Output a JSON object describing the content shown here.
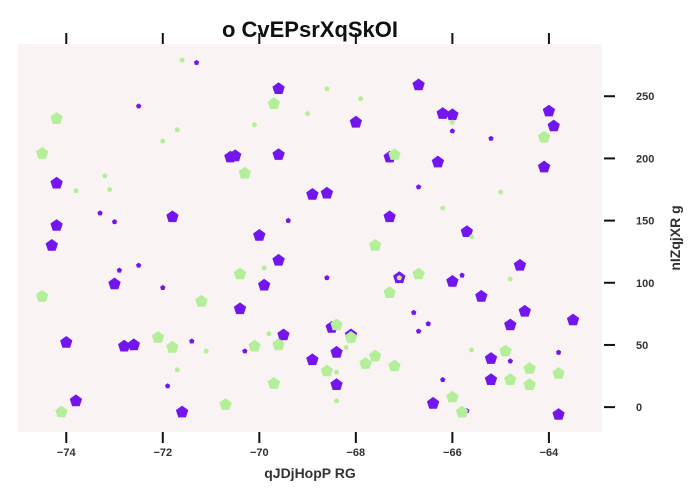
{
  "chart_data": {
    "type": "scatter",
    "title": "o CvEPsrXqSkOI",
    "xlabel": "qJDjHopP RG",
    "ylabel": "nIZqjXR g",
    "xlim": [
      -75.0,
      -62.9
    ],
    "ylim": [
      -20,
      292
    ],
    "x_ticks": [
      -74,
      -72,
      -70,
      -68,
      -66,
      -64
    ],
    "y_ticks": [
      0,
      50,
      100,
      150,
      200,
      250
    ],
    "x_tick_labels": [
      "−74",
      "−72",
      "−70",
      "−68",
      "−66",
      "−64"
    ],
    "y_tick_labels": [
      "0",
      "50",
      "100",
      "150",
      "200",
      "250"
    ],
    "x_ticks_position": "top and bottom",
    "y_ticks_position": "right",
    "grid": false,
    "legend": "none",
    "colors": {
      "background": "#faf3f3",
      "purple": "#7316ee",
      "green": "#b3ee99"
    },
    "series": [
      {
        "color": "#7316ee",
        "marker": "pentagon",
        "points": [
          {
            "x": -74.3,
            "y": 130,
            "s": 1
          },
          {
            "x": -74.2,
            "y": 180,
            "s": 1
          },
          {
            "x": -74.2,
            "y": 146,
            "s": 1
          },
          {
            "x": -74.0,
            "y": 52,
            "s": 1
          },
          {
            "x": -73.8,
            "y": 5,
            "s": 1
          },
          {
            "x": -73.0,
            "y": 99,
            "s": 1
          },
          {
            "x": -72.8,
            "y": 49,
            "s": 1
          },
          {
            "x": -72.6,
            "y": 50,
            "s": 1
          },
          {
            "x": -71.8,
            "y": 153,
            "s": 1
          },
          {
            "x": -71.6,
            "y": -4,
            "s": 1
          },
          {
            "x": -70.6,
            "y": 201,
            "s": 1
          },
          {
            "x": -70.5,
            "y": 202,
            "s": 1
          },
          {
            "x": -70.4,
            "y": 79,
            "s": 1
          },
          {
            "x": -70.0,
            "y": 138,
            "s": 1
          },
          {
            "x": -69.9,
            "y": 98,
            "s": 1
          },
          {
            "x": -69.6,
            "y": 256,
            "s": 1
          },
          {
            "x": -69.6,
            "y": 203,
            "s": 1
          },
          {
            "x": -69.6,
            "y": 118,
            "s": 1
          },
          {
            "x": -69.5,
            "y": 58,
            "s": 1
          },
          {
            "x": -68.9,
            "y": 171,
            "s": 1
          },
          {
            "x": -68.9,
            "y": 38,
            "s": 1
          },
          {
            "x": -68.6,
            "y": 172,
            "s": 1
          },
          {
            "x": -68.5,
            "y": 64,
            "s": 1
          },
          {
            "x": -68.4,
            "y": 44,
            "s": 1
          },
          {
            "x": -68.4,
            "y": 18,
            "s": 1
          },
          {
            "x": -68.1,
            "y": 58,
            "s": 1
          },
          {
            "x": -68.0,
            "y": 229,
            "s": 1
          },
          {
            "x": -67.3,
            "y": 201,
            "s": 1
          },
          {
            "x": -67.3,
            "y": 153,
            "s": 1
          },
          {
            "x": -67.1,
            "y": 104,
            "s": 1
          },
          {
            "x": -66.7,
            "y": 259,
            "s": 1
          },
          {
            "x": -66.4,
            "y": 3,
            "s": 1
          },
          {
            "x": -66.3,
            "y": 197,
            "s": 1
          },
          {
            "x": -66.2,
            "y": 236,
            "s": 1
          },
          {
            "x": -66.0,
            "y": 235,
            "s": 1
          },
          {
            "x": -66.0,
            "y": 101,
            "s": 1
          },
          {
            "x": -65.7,
            "y": 141,
            "s": 1
          },
          {
            "x": -65.4,
            "y": 89,
            "s": 1
          },
          {
            "x": -65.2,
            "y": 39,
            "s": 1
          },
          {
            "x": -65.2,
            "y": 22,
            "s": 1
          },
          {
            "x": -64.8,
            "y": 66,
            "s": 1
          },
          {
            "x": -64.6,
            "y": 114,
            "s": 1
          },
          {
            "x": -64.5,
            "y": 77,
            "s": 1
          },
          {
            "x": -64.1,
            "y": 193,
            "s": 1
          },
          {
            "x": -64.0,
            "y": 238,
            "s": 1
          },
          {
            "x": -63.9,
            "y": 226,
            "s": 1
          },
          {
            "x": -63.8,
            "y": -6,
            "s": 1
          },
          {
            "x": -63.5,
            "y": 70,
            "s": 1
          },
          {
            "x": -73.3,
            "y": 156,
            "s": 0
          },
          {
            "x": -73.0,
            "y": 149,
            "s": 0
          },
          {
            "x": -72.9,
            "y": 110,
            "s": 0
          },
          {
            "x": -72.5,
            "y": 114,
            "s": 0
          },
          {
            "x": -72.5,
            "y": 242,
            "s": 0
          },
          {
            "x": -72.0,
            "y": 96,
            "s": 0
          },
          {
            "x": -71.9,
            "y": 17,
            "s": 0
          },
          {
            "x": -71.4,
            "y": 53,
            "s": 0
          },
          {
            "x": -71.3,
            "y": 277,
            "s": 0
          },
          {
            "x": -70.3,
            "y": 45,
            "s": 0
          },
          {
            "x": -69.4,
            "y": 150,
            "s": 0
          },
          {
            "x": -68.6,
            "y": 104,
            "s": 0
          },
          {
            "x": -67.2,
            "y": 202,
            "s": 0
          },
          {
            "x": -66.7,
            "y": 177,
            "s": 0
          },
          {
            "x": -66.8,
            "y": 76,
            "s": 0
          },
          {
            "x": -66.7,
            "y": 61,
            "s": 0
          },
          {
            "x": -66.5,
            "y": 67,
            "s": 0
          },
          {
            "x": -66.2,
            "y": 22,
            "s": 0
          },
          {
            "x": -66.0,
            "y": 222,
            "s": 0
          },
          {
            "x": -65.8,
            "y": 106,
            "s": 0
          },
          {
            "x": -65.7,
            "y": -3,
            "s": 0
          },
          {
            "x": -65.2,
            "y": 216,
            "s": 0
          },
          {
            "x": -64.8,
            "y": 37,
            "s": 0
          },
          {
            "x": -63.8,
            "y": 44,
            "s": 0
          }
        ]
      },
      {
        "color": "#b3ee99",
        "marker": "pentagon",
        "points": [
          {
            "x": -74.5,
            "y": 204,
            "s": 1
          },
          {
            "x": -74.5,
            "y": 89,
            "s": 1
          },
          {
            "x": -74.2,
            "y": 232,
            "s": 1
          },
          {
            "x": -74.1,
            "y": -4,
            "s": 1
          },
          {
            "x": -72.1,
            "y": 56,
            "s": 1
          },
          {
            "x": -71.8,
            "y": 48,
            "s": 1
          },
          {
            "x": -71.2,
            "y": 85,
            "s": 1
          },
          {
            "x": -70.7,
            "y": 2,
            "s": 1
          },
          {
            "x": -70.3,
            "y": 188,
            "s": 1
          },
          {
            "x": -70.4,
            "y": 107,
            "s": 1
          },
          {
            "x": -70.1,
            "y": 49,
            "s": 1
          },
          {
            "x": -69.7,
            "y": 244,
            "s": 1
          },
          {
            "x": -69.7,
            "y": 19,
            "s": 1
          },
          {
            "x": -69.6,
            "y": 50,
            "s": 1
          },
          {
            "x": -68.6,
            "y": 29,
            "s": 1
          },
          {
            "x": -68.4,
            "y": 66,
            "s": 1
          },
          {
            "x": -68.1,
            "y": 56,
            "s": 1
          },
          {
            "x": -67.8,
            "y": 35,
            "s": 1
          },
          {
            "x": -67.6,
            "y": 41,
            "s": 1
          },
          {
            "x": -67.6,
            "y": 130,
            "s": 1
          },
          {
            "x": -67.3,
            "y": 92,
            "s": 1
          },
          {
            "x": -67.2,
            "y": 203,
            "s": 1
          },
          {
            "x": -67.2,
            "y": 33,
            "s": 1
          },
          {
            "x": -66.7,
            "y": 107,
            "s": 1
          },
          {
            "x": -66.0,
            "y": 8,
            "s": 1
          },
          {
            "x": -65.8,
            "y": -4,
            "s": 1
          },
          {
            "x": -64.9,
            "y": 45,
            "s": 1
          },
          {
            "x": -64.8,
            "y": 22,
            "s": 1
          },
          {
            "x": -64.4,
            "y": 31,
            "s": 1
          },
          {
            "x": -64.4,
            "y": 18,
            "s": 1
          },
          {
            "x": -64.1,
            "y": 217,
            "s": 1
          },
          {
            "x": -63.8,
            "y": 27,
            "s": 1
          },
          {
            "x": -73.8,
            "y": 174,
            "s": 0
          },
          {
            "x": -73.2,
            "y": 186,
            "s": 0
          },
          {
            "x": -73.1,
            "y": 175,
            "s": 0
          },
          {
            "x": -72.0,
            "y": 214,
            "s": 0
          },
          {
            "x": -71.7,
            "y": 30,
            "s": 0
          },
          {
            "x": -71.7,
            "y": 223,
            "s": 0
          },
          {
            "x": -71.6,
            "y": 279,
            "s": 0
          },
          {
            "x": -71.1,
            "y": 45,
            "s": 0
          },
          {
            "x": -70.1,
            "y": 227,
            "s": 0
          },
          {
            "x": -69.9,
            "y": 112,
            "s": 0
          },
          {
            "x": -69.8,
            "y": 59,
            "s": 0
          },
          {
            "x": -69.0,
            "y": 236,
            "s": 0
          },
          {
            "x": -68.6,
            "y": 256,
            "s": 0
          },
          {
            "x": -68.4,
            "y": 5,
            "s": 0
          },
          {
            "x": -68.4,
            "y": 28,
            "s": 0
          },
          {
            "x": -68.2,
            "y": 48,
            "s": 0
          },
          {
            "x": -67.9,
            "y": 248,
            "s": 0
          },
          {
            "x": -67.1,
            "y": 104,
            "s": 0
          },
          {
            "x": -66.2,
            "y": 160,
            "s": 0
          },
          {
            "x": -66.0,
            "y": 229,
            "s": 0
          },
          {
            "x": -65.6,
            "y": 137,
            "s": 0
          },
          {
            "x": -65.6,
            "y": 46,
            "s": 0
          },
          {
            "x": -65.0,
            "y": 173,
            "s": 0
          },
          {
            "x": -64.8,
            "y": 103,
            "s": 0
          }
        ]
      }
    ]
  }
}
